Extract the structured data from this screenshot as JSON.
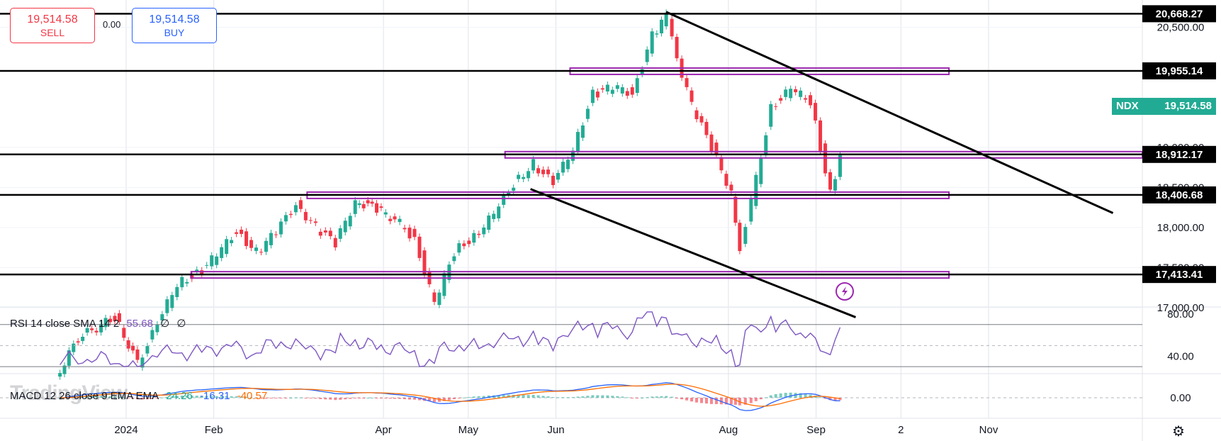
{
  "quote": {
    "sell_price": "19,514.58",
    "sell_label": "SELL",
    "buy_price": "19,514.58",
    "buy_label": "BUY",
    "spread": "0.00"
  },
  "symbol": "NDX",
  "last_price": "19,514.58",
  "watermark": "TradingView",
  "indicators": {
    "rsi": {
      "title": "RSI 14 close SMA 14 2",
      "value": "55.68",
      "extra1": "∅",
      "extra2": "∅"
    },
    "macd": {
      "title": "MACD 12 26 close 9 EMA EMA",
      "hist": "24.26",
      "macd": "-16.31",
      "signal": "-40.57"
    }
  },
  "colors": {
    "up": "#22ab94",
    "down": "#f23645",
    "zone": "#9c27b0",
    "rsi": "#7e57c2",
    "macd": "#2962ff",
    "signal": "#ff6d00",
    "tag": "#000000",
    "last_price_tag": "#22ab94"
  },
  "chart_data": {
    "type": "candlestick",
    "symbol": "NDX",
    "x_ticks": [
      "2024",
      "Feb",
      "Apr",
      "May",
      "Jun",
      "Aug",
      "Sep",
      "2",
      "Nov"
    ],
    "y_ticks": [
      17000,
      17500,
      18000,
      18500,
      19000,
      20500
    ],
    "y_tick_labels": [
      "17,000.00",
      "17,500.00",
      "18,000.00",
      "18,500.00",
      "19,000.00",
      "20,500.00"
    ],
    "ylim": [
      16860,
      20750
    ],
    "horizontal_levels": [
      {
        "value": 20668.27,
        "label": "20,668.27"
      },
      {
        "value": 19955.14,
        "label": "19,955.14"
      },
      {
        "value": 18912.17,
        "label": "18,912.17"
      },
      {
        "value": 18406.68,
        "label": "18,406.68"
      },
      {
        "value": 17413.41,
        "label": "17,413.41"
      }
    ],
    "zones": [
      {
        "from": "2024-06-06",
        "to": "2024-10-18",
        "value": 19955.14
      },
      {
        "from": "2024-05-14",
        "to": "2024-12-31",
        "value": 18912.17
      },
      {
        "from": "2024-03-05",
        "to": "2024-10-18",
        "value": 18406.68
      },
      {
        "from": "2024-01-24",
        "to": "2024-10-18",
        "value": 17413.41
      }
    ],
    "trendlines": [
      {
        "from": {
          "date": "2024-07-10",
          "value": 20690
        },
        "to": {
          "date": "2024-12-15",
          "value": 18180
        }
      },
      {
        "from": {
          "date": "2024-05-23",
          "value": 18480
        },
        "to": {
          "date": "2024-09-15",
          "value": 16880
        }
      }
    ],
    "last_price": 19514.58,
    "series": [
      {
        "date": "2023-12-07",
        "close": 16120
      },
      {
        "date": "2023-12-15",
        "close": 16620
      },
      {
        "date": "2023-12-28",
        "close": 16880
      },
      {
        "date": "2024-01-05",
        "close": 16310
      },
      {
        "date": "2024-01-12",
        "close": 16780
      },
      {
        "date": "2024-01-19",
        "close": 17310
      },
      {
        "date": "2024-01-26",
        "close": 17420
      },
      {
        "date": "2024-02-02",
        "close": 17650
      },
      {
        "date": "2024-02-09",
        "close": 17960
      },
      {
        "date": "2024-02-16",
        "close": 17690
      },
      {
        "date": "2024-02-23",
        "close": 17940
      },
      {
        "date": "2024-03-01",
        "close": 18300
      },
      {
        "date": "2024-03-08",
        "close": 18000
      },
      {
        "date": "2024-03-15",
        "close": 17800
      },
      {
        "date": "2024-03-22",
        "close": 18340
      },
      {
        "date": "2024-03-28",
        "close": 18250
      },
      {
        "date": "2024-04-05",
        "close": 18110
      },
      {
        "date": "2024-04-12",
        "close": 17860
      },
      {
        "date": "2024-04-19",
        "close": 17040
      },
      {
        "date": "2024-04-26",
        "close": 17700
      },
      {
        "date": "2024-05-03",
        "close": 17890
      },
      {
        "date": "2024-05-10",
        "close": 18160
      },
      {
        "date": "2024-05-17",
        "close": 18550
      },
      {
        "date": "2024-05-24",
        "close": 18800
      },
      {
        "date": "2024-05-31",
        "close": 18540
      },
      {
        "date": "2024-06-07",
        "close": 19000
      },
      {
        "date": "2024-06-14",
        "close": 19660
      },
      {
        "date": "2024-06-21",
        "close": 19750
      },
      {
        "date": "2024-06-28",
        "close": 19680
      },
      {
        "date": "2024-07-05",
        "close": 20390
      },
      {
        "date": "2024-07-10",
        "close": 20640
      },
      {
        "date": "2024-07-12",
        "close": 20330
      },
      {
        "date": "2024-07-19",
        "close": 19520
      },
      {
        "date": "2024-07-26",
        "close": 19000
      },
      {
        "date": "2024-08-02",
        "close": 18440
      },
      {
        "date": "2024-08-05",
        "close": 17750
      },
      {
        "date": "2024-08-09",
        "close": 18300
      },
      {
        "date": "2024-08-16",
        "close": 19500
      },
      {
        "date": "2024-08-23",
        "close": 19720
      },
      {
        "date": "2024-08-30",
        "close": 19580
      },
      {
        "date": "2024-09-06",
        "close": 18420
      },
      {
        "date": "2024-09-13",
        "close": 19390
      },
      {
        "date": "2024-09-16",
        "close": 19514.58
      }
    ]
  }
}
